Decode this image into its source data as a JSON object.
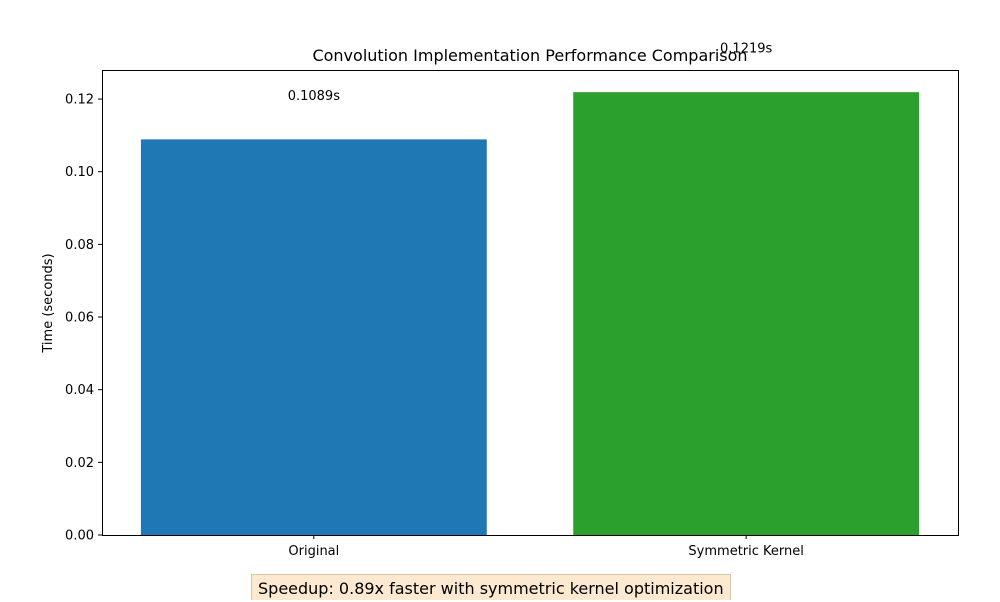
{
  "chart_data": {
    "type": "bar",
    "title": "Convolution Implementation Performance Comparison",
    "xlabel": "",
    "ylabel": "Time (seconds)",
    "categories": [
      "Original",
      "Symmetric Kernel"
    ],
    "values": [
      0.1089,
      0.1219
    ],
    "value_labels": [
      "0.1089s",
      "0.1219s"
    ],
    "colors": [
      "#1f77b4",
      "#2ca02c"
    ],
    "ylim": [
      0,
      0.128
    ],
    "yticks": [
      0.0,
      0.02,
      0.04,
      0.06,
      0.08,
      0.1,
      0.12
    ],
    "ytick_labels": [
      "0.00",
      "0.02",
      "0.04",
      "0.06",
      "0.08",
      "0.10",
      "0.12"
    ],
    "grid": false,
    "legend": "none"
  },
  "annotation": {
    "speedup_text": "Speedup: 0.89x faster with symmetric kernel optimization"
  }
}
